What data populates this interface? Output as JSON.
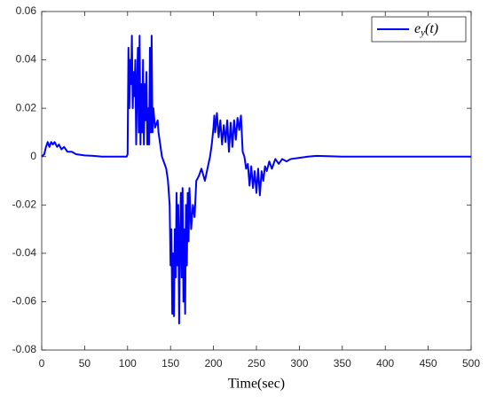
{
  "chart_data": {
    "type": "line",
    "xlabel": "Time(sec)",
    "x": [
      0,
      3,
      5,
      7,
      9,
      11,
      13,
      15,
      18,
      20,
      23,
      26,
      30,
      35,
      40,
      50,
      60,
      70,
      99,
      100,
      101,
      102,
      103,
      104,
      105,
      106,
      107,
      108,
      109,
      110,
      111,
      112,
      113,
      114,
      115,
      116,
      117,
      118,
      119,
      120,
      121,
      122,
      123,
      124,
      125,
      126,
      127,
      128,
      129,
      130,
      132,
      135,
      136,
      138,
      140,
      142,
      145,
      147,
      149,
      150,
      151,
      152,
      153,
      154,
      155,
      156,
      157,
      158,
      159,
      160,
      161,
      162,
      163,
      164,
      165,
      166,
      167,
      168,
      169,
      170,
      171,
      172,
      174,
      176,
      178,
      180,
      183,
      186,
      190,
      193,
      196,
      198,
      200,
      201,
      202,
      204,
      206,
      208,
      210,
      212,
      214,
      216,
      218,
      220,
      222,
      224,
      226,
      228,
      230,
      232,
      234,
      236,
      238,
      240,
      242,
      244,
      246,
      248,
      250,
      252,
      254,
      256,
      258,
      260,
      262,
      265,
      268,
      272,
      276,
      280,
      285,
      290,
      300,
      310,
      320,
      350,
      400,
      500
    ],
    "series": [
      {
        "name": "e_y(t)",
        "color": "#0000ff",
        "values": [
          0,
          0.001,
          0.004,
          0.006,
          0.004,
          0.006,
          0.005,
          0.006,
          0.004,
          0.005,
          0.003,
          0.004,
          0.002,
          0.002,
          0.001,
          0.0005,
          0.0003,
          0,
          0,
          0.001,
          0.045,
          0.02,
          0.04,
          0.03,
          0.05,
          0.02,
          0.035,
          0.025,
          0.04,
          0.005,
          0.03,
          0.045,
          0.01,
          0.05,
          0.005,
          0.03,
          0.01,
          0.04,
          0.005,
          0.03,
          0.015,
          0.035,
          0.005,
          0.02,
          0.005,
          0.045,
          0.01,
          0.05,
          0.01,
          0.02,
          0.012,
          0.015,
          0.01,
          0.005,
          0,
          -0.002,
          -0.005,
          -0.01,
          -0.02,
          -0.045,
          -0.03,
          -0.065,
          -0.04,
          -0.066,
          -0.03,
          -0.05,
          -0.015,
          -0.045,
          -0.02,
          -0.069,
          -0.035,
          -0.015,
          -0.05,
          -0.013,
          -0.06,
          -0.03,
          -0.065,
          -0.02,
          -0.045,
          -0.015,
          -0.035,
          -0.013,
          -0.03,
          -0.02,
          -0.025,
          -0.01,
          -0.008,
          -0.005,
          -0.01,
          -0.005,
          0,
          0.005,
          0.012,
          0.017,
          0.01,
          0.018,
          0.008,
          0.015,
          0.005,
          0.013,
          0.006,
          0.015,
          0.002,
          0.014,
          0.004,
          0.015,
          0.007,
          0.016,
          0.011,
          0.017,
          0.002,
          0,
          -0.005,
          -0.003,
          -0.012,
          -0.004,
          -0.013,
          -0.006,
          -0.015,
          -0.005,
          -0.016,
          -0.006,
          -0.01,
          -0.004,
          -0.006,
          -0.002,
          -0.005,
          -0.001,
          -0.003,
          -0.001,
          -0.002,
          -0.001,
          -0.0005,
          0,
          0.0003,
          0,
          0,
          0
        ]
      }
    ],
    "xlim": [
      0,
      500
    ],
    "xticks": [
      0,
      50,
      100,
      150,
      200,
      250,
      300,
      350,
      400,
      450,
      500
    ],
    "ylim": [
      -0.08,
      0.06
    ],
    "yticks": [
      0.06,
      0.04,
      0.02,
      0,
      -0.02,
      -0.04,
      -0.06,
      -0.08
    ],
    "grid": false,
    "legend": "top-right"
  }
}
